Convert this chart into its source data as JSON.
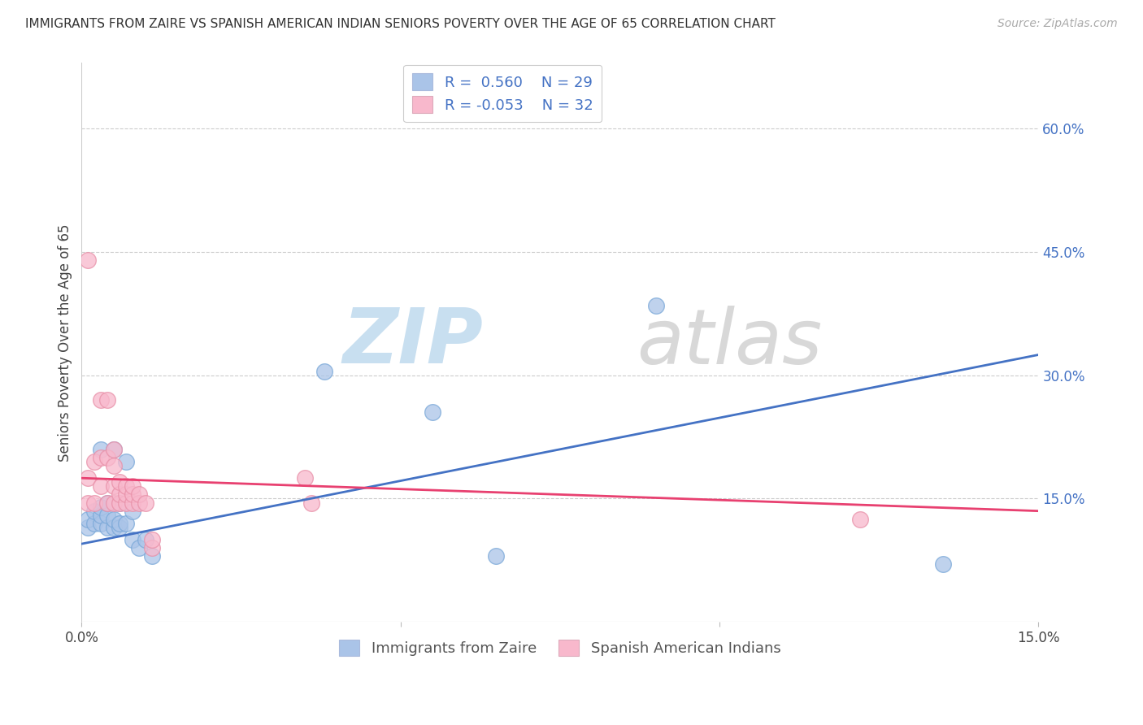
{
  "title": "IMMIGRANTS FROM ZAIRE VS SPANISH AMERICAN INDIAN SENIORS POVERTY OVER THE AGE OF 65 CORRELATION CHART",
  "source": "Source: ZipAtlas.com",
  "ylabel": "Seniors Poverty Over the Age of 65",
  "y_ticks_right": [
    "60.0%",
    "45.0%",
    "30.0%",
    "15.0%"
  ],
  "y_ticks_right_vals": [
    0.6,
    0.45,
    0.3,
    0.15
  ],
  "xlim": [
    0.0,
    0.15
  ],
  "ylim": [
    0.0,
    0.68
  ],
  "blue_color": "#aac4e8",
  "blue_edge_color": "#7aa8d8",
  "blue_line_color": "#4472c4",
  "pink_color": "#f8b8cc",
  "pink_edge_color": "#e890a8",
  "pink_line_color": "#e84070",
  "R_blue": 0.56,
  "N_blue": 29,
  "R_pink": -0.053,
  "N_pink": 32,
  "legend_label_blue": "Immigrants from Zaire",
  "legend_label_pink": "Spanish American Indians",
  "blue_scatter_x": [
    0.001,
    0.001,
    0.002,
    0.002,
    0.003,
    0.003,
    0.003,
    0.003,
    0.004,
    0.004,
    0.004,
    0.005,
    0.005,
    0.005,
    0.006,
    0.006,
    0.006,
    0.007,
    0.007,
    0.008,
    0.008,
    0.009,
    0.01,
    0.011,
    0.038,
    0.055,
    0.065,
    0.09,
    0.135
  ],
  "blue_scatter_y": [
    0.115,
    0.125,
    0.12,
    0.135,
    0.12,
    0.13,
    0.14,
    0.21,
    0.115,
    0.13,
    0.145,
    0.115,
    0.125,
    0.21,
    0.115,
    0.12,
    0.145,
    0.12,
    0.195,
    0.1,
    0.135,
    0.09,
    0.1,
    0.08,
    0.305,
    0.255,
    0.08,
    0.385,
    0.07
  ],
  "pink_scatter_x": [
    0.001,
    0.001,
    0.001,
    0.002,
    0.002,
    0.003,
    0.003,
    0.003,
    0.004,
    0.004,
    0.004,
    0.005,
    0.005,
    0.005,
    0.005,
    0.006,
    0.006,
    0.006,
    0.007,
    0.007,
    0.007,
    0.008,
    0.008,
    0.008,
    0.009,
    0.009,
    0.01,
    0.011,
    0.011,
    0.035,
    0.036,
    0.122
  ],
  "pink_scatter_y": [
    0.145,
    0.175,
    0.44,
    0.145,
    0.195,
    0.165,
    0.2,
    0.27,
    0.145,
    0.2,
    0.27,
    0.145,
    0.165,
    0.19,
    0.21,
    0.145,
    0.155,
    0.17,
    0.145,
    0.155,
    0.165,
    0.145,
    0.155,
    0.165,
    0.145,
    0.155,
    0.145,
    0.09,
    0.1,
    0.175,
    0.145,
    0.125
  ],
  "blue_line_x0": 0.0,
  "blue_line_y0": 0.095,
  "blue_line_x1": 0.15,
  "blue_line_y1": 0.325,
  "pink_line_x0": 0.0,
  "pink_line_y0": 0.175,
  "pink_line_x1": 0.15,
  "pink_line_y1": 0.135
}
